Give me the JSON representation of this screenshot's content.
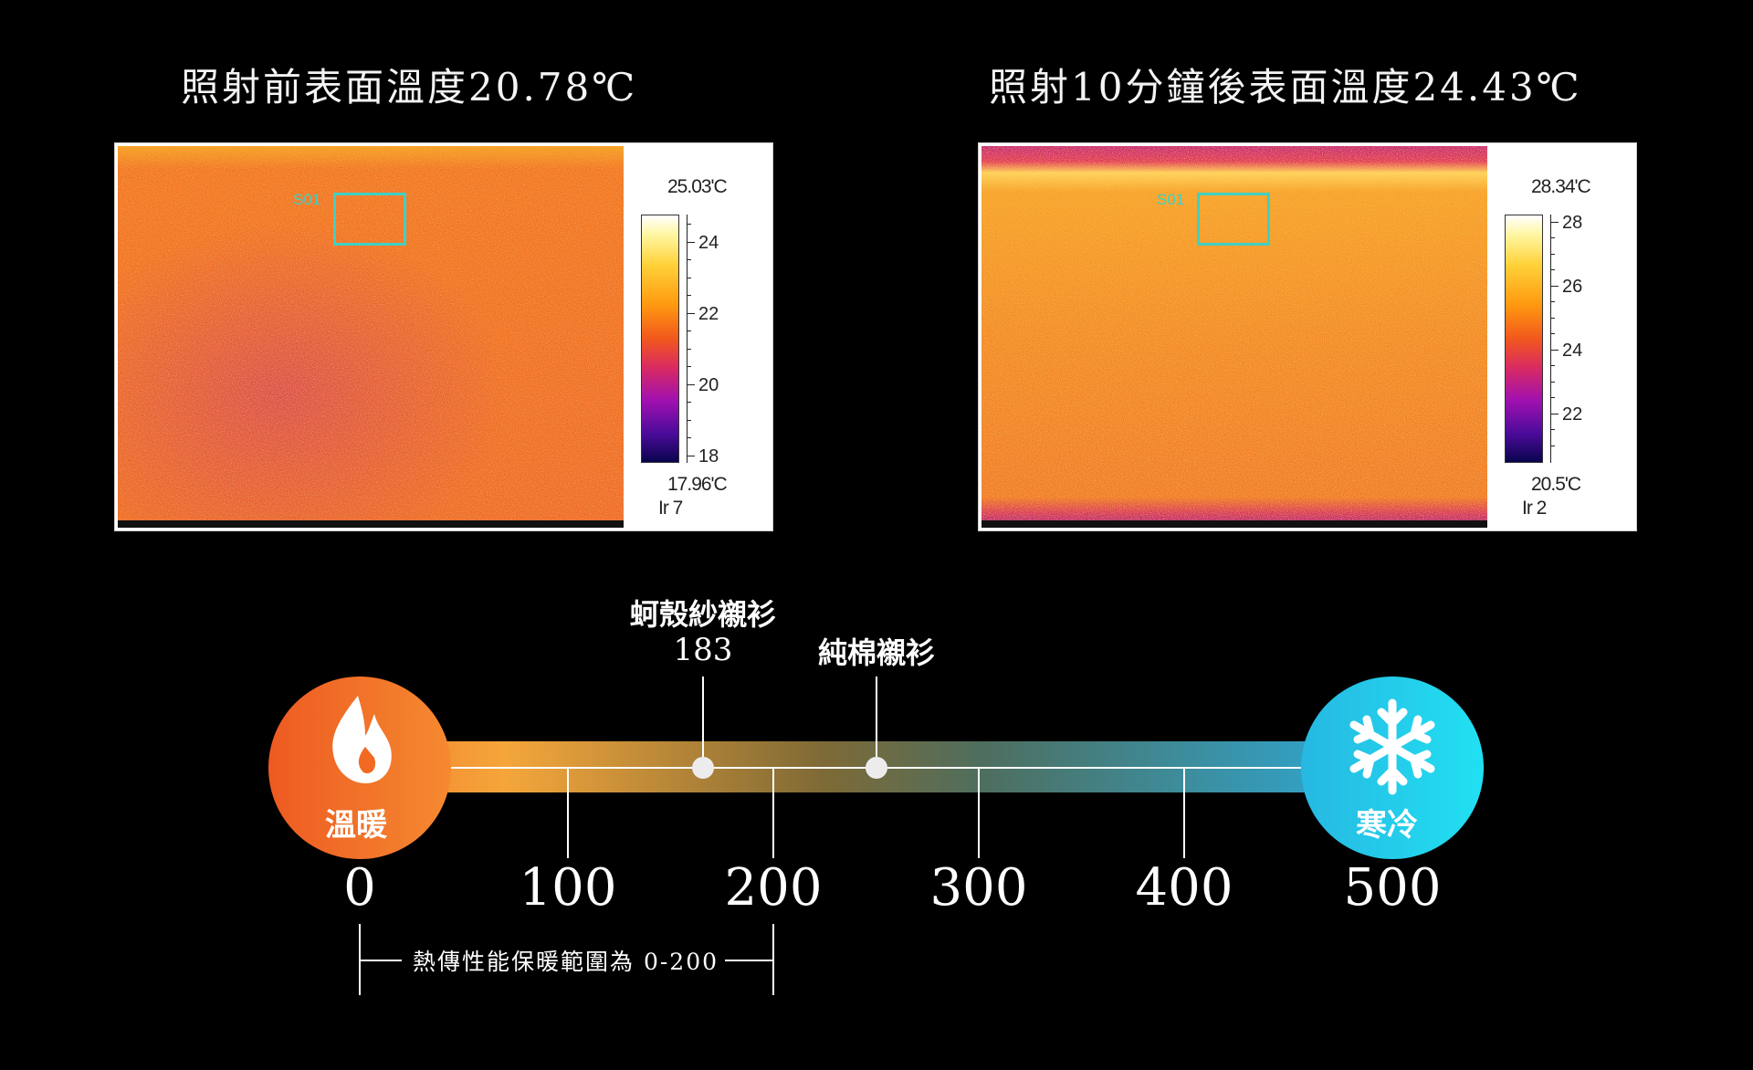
{
  "left_panel": {
    "title": "照射前表面溫度20.78℃",
    "roi": "S01",
    "scale_max": "25.03'C",
    "scale_min": "17.96'C",
    "scale_id": "Ir 7",
    "tick_labels": [
      "24",
      "22",
      "20",
      "18"
    ]
  },
  "right_panel": {
    "title": "照射10分鐘後表面溫度24.43℃",
    "roi": "S01",
    "scale_max": "28.34'C",
    "scale_min": "20.5'C",
    "scale_id": "Ir 2",
    "tick_labels": [
      "28",
      "26",
      "24",
      "22"
    ]
  },
  "scale": {
    "warm_label": "溫暖",
    "cold_label": "寒冷",
    "numbers": [
      "0",
      "100",
      "200",
      "300",
      "400",
      "500"
    ],
    "marker1_name": "蚵殼紗襯衫",
    "marker1_value": "183",
    "marker2_name": "純棉襯衫",
    "range_note": "熱傳性能保暖範圍為 0-200",
    "colors": {
      "warm": "#f26a22",
      "cold": "#1ed1ef"
    },
    "icons": {
      "warm": "flame-icon",
      "cold": "snowflake-icon"
    }
  }
}
